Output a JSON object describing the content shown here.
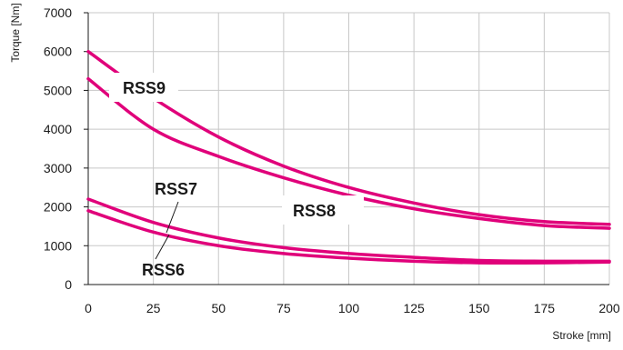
{
  "chart_data": {
    "type": "line",
    "title": "",
    "xlabel": "Stroke [mm]",
    "ylabel": "Torque [Nm]",
    "xlim": [
      0,
      200
    ],
    "ylim": [
      0,
      7000
    ],
    "xticks": [
      0,
      25,
      50,
      75,
      100,
      125,
      150,
      175,
      200
    ],
    "yticks": [
      0,
      1000,
      2000,
      3000,
      4000,
      5000,
      6000,
      7000
    ],
    "grid": true,
    "line_color": "#e0007a",
    "series": [
      {
        "name": "RSS9",
        "points": [
          [
            0,
            6000
          ],
          [
            25,
            4800
          ],
          [
            50,
            3800
          ],
          [
            75,
            3050
          ],
          [
            100,
            2500
          ],
          [
            125,
            2100
          ],
          [
            150,
            1800
          ],
          [
            175,
            1620
          ],
          [
            200,
            1550
          ]
        ]
      },
      {
        "name": "RSS8",
        "points": [
          [
            0,
            5300
          ],
          [
            25,
            4000
          ],
          [
            50,
            3300
          ],
          [
            75,
            2750
          ],
          [
            100,
            2300
          ],
          [
            125,
            1950
          ],
          [
            150,
            1700
          ],
          [
            175,
            1520
          ],
          [
            200,
            1450
          ]
        ]
      },
      {
        "name": "RSS7",
        "points": [
          [
            0,
            2200
          ],
          [
            25,
            1600
          ],
          [
            50,
            1200
          ],
          [
            75,
            950
          ],
          [
            100,
            800
          ],
          [
            125,
            700
          ],
          [
            150,
            620
          ],
          [
            175,
            600
          ],
          [
            200,
            600
          ]
        ]
      },
      {
        "name": "RSS6",
        "points": [
          [
            0,
            1900
          ],
          [
            25,
            1350
          ],
          [
            50,
            1000
          ],
          [
            75,
            800
          ],
          [
            100,
            680
          ],
          [
            125,
            600
          ],
          [
            150,
            560
          ],
          [
            175,
            560
          ],
          [
            200,
            580
          ]
        ]
      }
    ]
  }
}
